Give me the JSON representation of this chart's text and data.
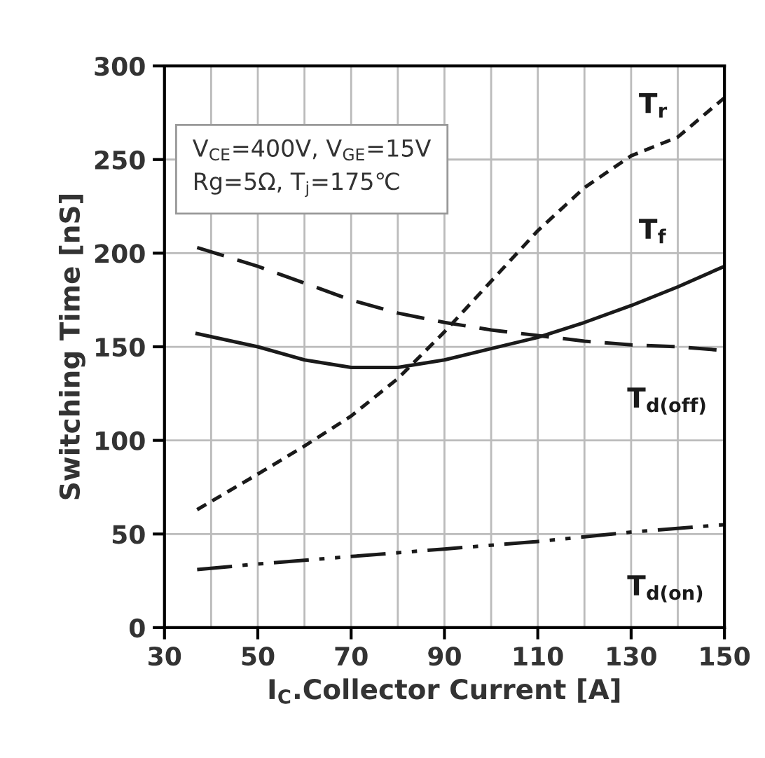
{
  "chart_data": {
    "type": "line",
    "xlabel": "I$_{C}$.Collector Current [A]",
    "ylabel": "Switching Time [nS]",
    "xlim": [
      30,
      150
    ],
    "ylim": [
      0,
      300
    ],
    "xticks": [
      30,
      {
        "value": 40,
        "label": null
      },
      50,
      {
        "value": 60,
        "label": null
      },
      70,
      {
        "value": 80,
        "label": null
      },
      90,
      {
        "value": 100,
        "label": null
      },
      110,
      {
        "value": 120,
        "label": null
      },
      130,
      {
        "value": 140,
        "label": null
      },
      150
    ],
    "yticks": [
      0,
      50,
      100,
      150,
      200,
      250,
      300
    ],
    "grid": true,
    "marker": "none",
    "series": [
      {
        "name": "T$_{r}$",
        "color": "#1a1a1a",
        "line_style": "dotted",
        "x": [
          37,
          50,
          60,
          70,
          80,
          90,
          100,
          110,
          120,
          130,
          140,
          150
        ],
        "values": [
          63,
          82,
          97,
          113,
          133,
          158,
          185,
          212,
          235,
          252,
          262,
          283
        ]
      },
      {
        "name": "T$_{f}$",
        "color": "#1a1a1a",
        "line_style": "solid",
        "x": [
          37,
          50,
          60,
          70,
          80,
          90,
          100,
          110,
          120,
          130,
          140,
          150
        ],
        "values": [
          157,
          150,
          143,
          139,
          139,
          143,
          149,
          155,
          163,
          172,
          182,
          193
        ]
      },
      {
        "name": "T$_{d(off)}$",
        "color": "#1a1a1a",
        "line_style": "dashed",
        "x": [
          37,
          50,
          60,
          70,
          80,
          90,
          100,
          110,
          120,
          130,
          140,
          150
        ],
        "values": [
          203,
          193,
          184,
          175,
          168,
          163,
          159,
          156,
          153,
          151,
          150,
          148
        ]
      },
      {
        "name": "T$_{d(on)}$",
        "color": "#1a1a1a",
        "line_style": "dashdot",
        "x": [
          37,
          50,
          70,
          90,
          110,
          130,
          150
        ],
        "values": [
          31,
          34,
          38,
          42,
          46,
          51,
          55
        ]
      }
    ],
    "annotations": [
      "V$_{CE}$=400V, V$_{GE}$=15V\nRg=5Ω, T$_{j}$=175℃"
    ]
  }
}
